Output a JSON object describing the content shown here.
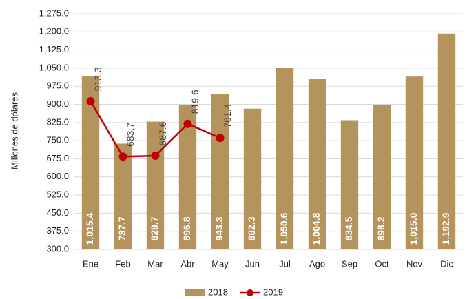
{
  "chart_data": {
    "type": "bar_line",
    "y_axis_label": "Millones de dólares",
    "categories": [
      "Ene",
      "Feb",
      "Mar",
      "Abr",
      "May",
      "Jun",
      "Jul",
      "Ago",
      "Sep",
      "Oct",
      "Nov",
      "Dic"
    ],
    "series": [
      {
        "name": "2018",
        "type": "bar",
        "color": "#b5935d",
        "values": [
          1015.4,
          737.7,
          828.7,
          896.8,
          943.3,
          882.3,
          1050.6,
          1004.8,
          834.5,
          898.2,
          1015.0,
          1192.9
        ],
        "value_labels": [
          "1,015.4",
          "737.7",
          "828.7",
          "896.8",
          "943.3",
          "882.3",
          "1,050.6",
          "1,004.8",
          "834.5",
          "898.2",
          "1,015.0",
          "1,192.9"
        ]
      },
      {
        "name": "2019",
        "type": "line",
        "color": "#c00000",
        "values": [
          913.3,
          683.7,
          687.6,
          819.6,
          761.4,
          null,
          null,
          null,
          null,
          null,
          null,
          null
        ]
      }
    ],
    "ylim": [
      300,
      1275
    ],
    "yticks": [
      {
        "value": 300,
        "label": "300.0"
      },
      {
        "value": 375,
        "label": "375.0"
      },
      {
        "value": 450,
        "label": "450.0"
      },
      {
        "value": 525,
        "label": "525.0"
      },
      {
        "value": 600,
        "label": "600.0"
      },
      {
        "value": 675,
        "label": "675.0"
      },
      {
        "value": 750,
        "label": "750.0"
      },
      {
        "value": 825,
        "label": "825.0"
      },
      {
        "value": 900,
        "label": "900.0"
      },
      {
        "value": 975,
        "label": "975.0"
      },
      {
        "value": 1050,
        "label": "1,050.0"
      },
      {
        "value": 1125,
        "label": "1,125.0"
      },
      {
        "value": 1200,
        "label": "1,200.0"
      },
      {
        "value": 1275,
        "label": "1,275.0"
      }
    ],
    "grid": true,
    "legend": "bottom"
  }
}
